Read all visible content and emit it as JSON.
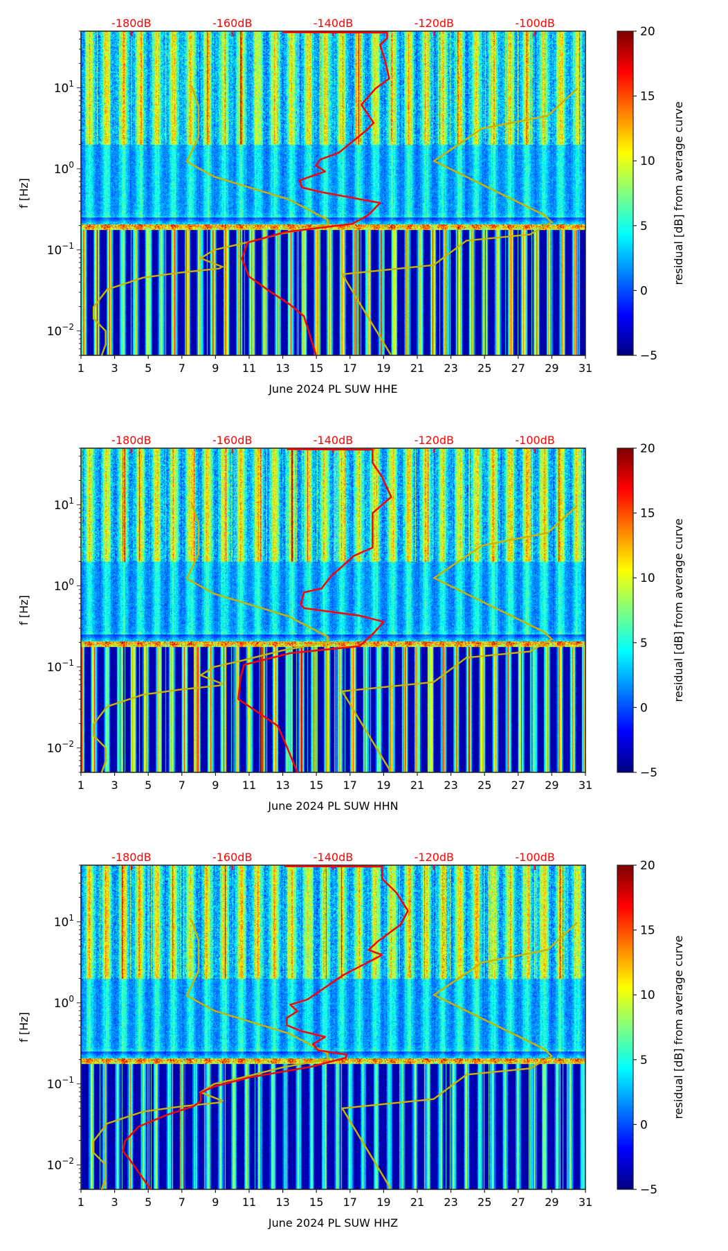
{
  "chart_data": {
    "type": "heatmap",
    "figure_layout": "3 stacked panels",
    "colorbar": {
      "label": "residual [dB] from average curve",
      "range": [
        -5,
        20
      ],
      "ticks": [
        "−5",
        "0",
        "5",
        "10",
        "15",
        "20"
      ],
      "tick_values": [
        -5,
        0,
        5,
        10,
        15,
        20
      ],
      "colormap": "jet"
    },
    "x_axis": {
      "range": [
        1,
        31
      ],
      "ticks": [
        1,
        3,
        5,
        7,
        9,
        11,
        13,
        15,
        17,
        19,
        21,
        23,
        25,
        27,
        29,
        31
      ],
      "tick_labels": [
        "1",
        "3",
        "5",
        "7",
        "9",
        "11",
        "13",
        "15",
        "17",
        "19",
        "21",
        "23",
        "25",
        "27",
        "29",
        "31"
      ],
      "unit": "day"
    },
    "y_axis": {
      "label": "f [Hz]",
      "scale": "log",
      "range": [
        0.005,
        50
      ],
      "ticks": [
        10,
        1,
        0.1,
        0.01
      ],
      "tick_bases": [
        "10",
        "10",
        "10",
        "10"
      ],
      "tick_exponents": [
        "1",
        "0",
        "−1",
        "−2"
      ]
    },
    "top_axis": {
      "unit": "dB",
      "range": [
        -190,
        -90
      ],
      "ticks": [
        -180,
        -160,
        -140,
        -120,
        -100
      ],
      "tick_labels": [
        "-180dB",
        "-160dB",
        "-140dB",
        "-120dB",
        "-100dB"
      ],
      "color": "#ff0000"
    },
    "reference_curves": {
      "color": "#c8b400",
      "low_noise_model": [
        [
          0.005,
          -185.9
        ],
        [
          0.0068,
          -185.1
        ],
        [
          0.01,
          -185.1
        ],
        [
          0.0142,
          -187.5
        ],
        [
          0.0197,
          -187.5
        ],
        [
          0.0325,
          -184.8
        ],
        [
          0.0455,
          -177.7
        ],
        [
          0.0525,
          -170.3
        ],
        [
          0.0589,
          -162.6
        ],
        [
          0.062,
          -162.0
        ],
        [
          0.079,
          -166.3
        ],
        [
          0.1,
          -163.6
        ],
        [
          0.12,
          -158.0
        ],
        [
          0.16,
          -150.0
        ],
        [
          0.202,
          -141.1
        ],
        [
          0.236,
          -141.1
        ],
        [
          0.42,
          -148.8
        ],
        [
          0.63,
          -158.1
        ],
        [
          0.8,
          -163.6
        ],
        [
          1.23,
          -169.0
        ],
        [
          2.48,
          -166.7
        ],
        [
          5.9,
          -166.7
        ],
        [
          10.6,
          -168.1
        ]
      ],
      "high_noise_model": [
        [
          0.0051,
          -128.6
        ],
        [
          0.05,
          -138.2
        ],
        [
          0.065,
          -120.1
        ],
        [
          0.13,
          -113.6
        ],
        [
          0.155,
          -101.0
        ],
        [
          0.22,
          -96.7
        ],
        [
          0.27,
          -98.2
        ],
        [
          1.25,
          -120.0
        ],
        [
          3.15,
          -110.5
        ],
        [
          4.5,
          -97.5
        ],
        [
          9.8,
          -91.6
        ]
      ]
    },
    "mean_curve_color": "#ff0000",
    "panels": [
      {
        "title": "June 2024 PL SUW  HHE",
        "channel": "HHE",
        "mean_psd": [
          [
            0.005,
            -143.4
          ],
          [
            0.0152,
            -145.8
          ],
          [
            0.021,
            -148.5
          ],
          [
            0.031,
            -152.6
          ],
          [
            0.047,
            -156.7
          ],
          [
            0.078,
            -158.1
          ],
          [
            0.123,
            -157.0
          ],
          [
            0.166,
            -149.5
          ],
          [
            0.21,
            -136.2
          ],
          [
            0.27,
            -133.0
          ],
          [
            0.38,
            -130.7
          ],
          [
            0.52,
            -142.6
          ],
          [
            0.59,
            -146.2
          ],
          [
            0.72,
            -146.7
          ],
          [
            0.93,
            -141.6
          ],
          [
            1.1,
            -143.4
          ],
          [
            1.3,
            -142.6
          ],
          [
            1.58,
            -138.9
          ],
          [
            3.0,
            -133.4
          ],
          [
            3.7,
            -132.0
          ],
          [
            6.2,
            -134.4
          ],
          [
            9.8,
            -131.6
          ],
          [
            13,
            -128.9
          ],
          [
            21.5,
            -129.7
          ],
          [
            34,
            -130.7
          ],
          [
            41,
            -129.3
          ],
          [
            48,
            -129.3
          ],
          [
            48.5,
            -150.0
          ]
        ]
      },
      {
        "title": "June 2024 PL SUW  HHN",
        "channel": "HHN",
        "mean_psd": [
          [
            0.005,
            -147.1
          ],
          [
            0.0104,
            -149.2
          ],
          [
            0.0187,
            -151.0
          ],
          [
            0.027,
            -154.7
          ],
          [
            0.04,
            -158.8
          ],
          [
            0.072,
            -158.4
          ],
          [
            0.106,
            -157.7
          ],
          [
            0.148,
            -148.5
          ],
          [
            0.18,
            -134.8
          ],
          [
            0.26,
            -132.0
          ],
          [
            0.36,
            -130.0
          ],
          [
            0.43,
            -134.8
          ],
          [
            0.53,
            -145.8
          ],
          [
            0.59,
            -146.4
          ],
          [
            0.83,
            -145.8
          ],
          [
            0.93,
            -142.3
          ],
          [
            1.3,
            -140.5
          ],
          [
            2.35,
            -135.9
          ],
          [
            2.97,
            -132.2
          ],
          [
            7.9,
            -132.2
          ],
          [
            12.5,
            -128.5
          ],
          [
            22,
            -130.3
          ],
          [
            33,
            -132.2
          ],
          [
            41.6,
            -132.2
          ],
          [
            48,
            -132.2
          ],
          [
            48.5,
            -149.2
          ]
        ]
      },
      {
        "title": "June 2024 PL SUW  HHZ",
        "channel": "HHZ",
        "mean_psd": [
          [
            0.005,
            -176.2
          ],
          [
            0.0118,
            -180.4
          ],
          [
            0.0149,
            -181.7
          ],
          [
            0.0196,
            -181.3
          ],
          [
            0.0296,
            -178.6
          ],
          [
            0.041,
            -173.2
          ],
          [
            0.053,
            -167.7
          ],
          [
            0.061,
            -166.3
          ],
          [
            0.078,
            -166.3
          ],
          [
            0.093,
            -163.6
          ],
          [
            0.12,
            -156.7
          ],
          [
            0.163,
            -144.4
          ],
          [
            0.21,
            -137.5
          ],
          [
            0.23,
            -137.3
          ],
          [
            0.26,
            -143.0
          ],
          [
            0.31,
            -144.0
          ],
          [
            0.38,
            -141.6
          ],
          [
            0.45,
            -146.4
          ],
          [
            0.53,
            -149.2
          ],
          [
            0.65,
            -149.2
          ],
          [
            0.79,
            -147.1
          ],
          [
            0.95,
            -148.5
          ],
          [
            1.1,
            -145.1
          ],
          [
            2.2,
            -138.0
          ],
          [
            3.9,
            -130.3
          ],
          [
            4.5,
            -133.0
          ],
          [
            5.7,
            -131.2
          ],
          [
            9.3,
            -126.6
          ],
          [
            13.7,
            -125.2
          ],
          [
            23,
            -127.5
          ],
          [
            34,
            -130.3
          ],
          [
            42,
            -130.3
          ],
          [
            48,
            -130.3
          ],
          [
            48.5,
            -149.7
          ]
        ]
      }
    ]
  }
}
